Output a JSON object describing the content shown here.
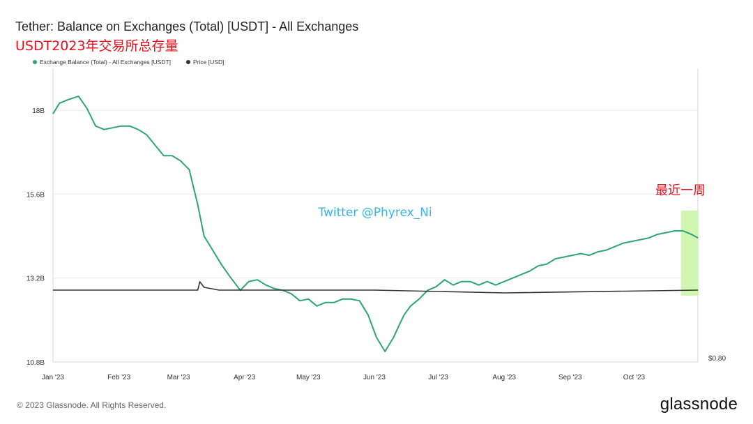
{
  "header": {
    "title": "Tether: Balance on Exchanges (Total) [USDT] - All Exchanges",
    "subtitle": "USDT2023年交易所总存量"
  },
  "legend": {
    "items": [
      {
        "label": "Exchange Balance (Total) - All Exchanges [USDT]",
        "color": "#2ea37a"
      },
      {
        "label": "Price [USD]",
        "color": "#333333"
      }
    ]
  },
  "annotations": {
    "watermark": "Twitter @Phyrex_Ni",
    "recent_week": "最近一周",
    "highlight_color": "#c8f5a4"
  },
  "footer": {
    "copyright": "© 2023 Glassnode. All Rights Reserved.",
    "brand": "glassnode"
  },
  "chart_data": {
    "type": "line",
    "x_ticks": [
      "Jan '23",
      "Feb '23",
      "Mar '23",
      "Apr '23",
      "May '23",
      "Jun '23",
      "Jul '23",
      "Aug '23",
      "Sep '23",
      "Oct '23"
    ],
    "y_ticks": [
      "18B",
      "15.6B",
      "13.2B",
      "10.8B"
    ],
    "right_y_ticks": [
      "$0.80"
    ],
    "ylim": [
      10.8,
      19.2
    ],
    "grid": true,
    "legend_position": "top-left",
    "series": [
      {
        "name": "Exchange Balance (Total) - All Exchanges [USDT]",
        "color": "#2ea37a",
        "x": [
          "2023-01-01",
          "2023-01-04",
          "2023-01-08",
          "2023-01-13",
          "2023-01-17",
          "2023-01-21",
          "2023-01-25",
          "2023-01-29",
          "2023-02-02",
          "2023-02-06",
          "2023-02-10",
          "2023-02-14",
          "2023-02-18",
          "2023-02-22",
          "2023-02-26",
          "2023-03-02",
          "2023-03-06",
          "2023-03-10",
          "2023-03-13",
          "2023-03-15",
          "2023-03-18",
          "2023-03-21",
          "2023-03-25",
          "2023-03-30",
          "2023-04-03",
          "2023-04-07",
          "2023-04-11",
          "2023-04-15",
          "2023-04-19",
          "2023-04-23",
          "2023-04-27",
          "2023-05-01",
          "2023-05-05",
          "2023-05-09",
          "2023-05-13",
          "2023-05-17",
          "2023-05-21",
          "2023-05-25",
          "2023-05-29",
          "2023-06-02",
          "2023-06-06",
          "2023-06-10",
          "2023-06-13",
          "2023-06-15",
          "2023-06-18",
          "2023-06-22",
          "2023-06-26",
          "2023-06-30",
          "2023-07-04",
          "2023-07-08",
          "2023-07-12",
          "2023-07-16",
          "2023-07-20",
          "2023-07-24",
          "2023-07-28",
          "2023-08-01",
          "2023-08-05",
          "2023-08-09",
          "2023-08-13",
          "2023-08-17",
          "2023-08-21",
          "2023-08-25",
          "2023-08-29",
          "2023-09-02",
          "2023-09-06",
          "2023-09-10",
          "2023-09-14",
          "2023-09-18",
          "2023-09-22",
          "2023-09-26",
          "2023-09-30",
          "2023-10-04",
          "2023-10-08",
          "2023-10-12",
          "2023-10-16",
          "2023-10-20",
          "2023-10-24",
          "2023-10-28",
          "2023-10-31"
        ],
        "values": [
          17.9,
          18.2,
          18.3,
          18.4,
          18.05,
          17.55,
          17.45,
          17.5,
          17.55,
          17.55,
          17.45,
          17.3,
          17.0,
          16.7,
          16.7,
          16.55,
          16.3,
          15.3,
          14.4,
          14.2,
          13.9,
          13.6,
          13.25,
          12.85,
          13.1,
          13.15,
          13.0,
          12.9,
          12.85,
          12.75,
          12.55,
          12.6,
          12.4,
          12.5,
          12.5,
          12.6,
          12.6,
          12.55,
          12.15,
          11.5,
          11.1,
          11.5,
          11.9,
          12.15,
          12.4,
          12.6,
          12.85,
          12.95,
          13.15,
          13.0,
          13.1,
          13.1,
          13.0,
          13.1,
          13.0,
          13.1,
          13.2,
          13.3,
          13.4,
          13.55,
          13.6,
          13.75,
          13.8,
          13.85,
          13.9,
          13.85,
          13.95,
          14.0,
          14.1,
          14.2,
          14.25,
          14.3,
          14.35,
          14.45,
          14.5,
          14.55,
          14.55,
          14.45,
          14.35
        ]
      },
      {
        "name": "Price [USD]",
        "color": "#333333",
        "x": [
          "2023-01-01",
          "2023-03-10",
          "2023-03-11",
          "2023-03-13",
          "2023-03-20",
          "2023-06-01",
          "2023-08-01",
          "2023-10-31"
        ],
        "values": [
          1.0,
          1.0,
          1.03,
          1.01,
          1.0,
          1.0,
          0.99,
          1.0
        ]
      }
    ]
  }
}
